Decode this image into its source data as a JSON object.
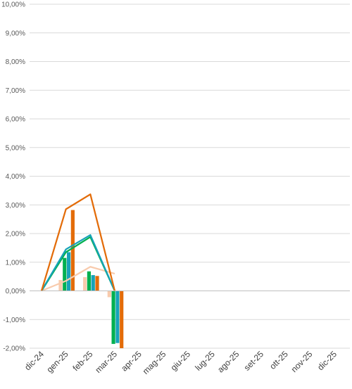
{
  "chart_data": {
    "type": "bar",
    "categories": [
      "dic-24",
      "gen-25",
      "feb-25",
      "mar-25",
      "apr-25",
      "mag-25",
      "giu-25",
      "lug-25",
      "ago-25",
      "set-25",
      "ott-25",
      "nov-25",
      "dic-25"
    ],
    "y_ticks": [
      "-2,00%",
      "-1,00%",
      "0,00%",
      "1,00%",
      "2,00%",
      "3,00%",
      "4,00%",
      "5,00%",
      "6,00%",
      "7,00%",
      "8,00%",
      "9,00%",
      "10,00%"
    ],
    "ylim": [
      -2,
      10
    ],
    "grid": true,
    "legend": "none",
    "bar_series": [
      {
        "color": "#f8cbad",
        "values": [
          0,
          0.38,
          0.48,
          -0.22
        ]
      },
      {
        "color": "#00b050",
        "values": [
          0,
          1.15,
          0.68,
          -1.85
        ]
      },
      {
        "color": "#17a2b8",
        "values": [
          0,
          1.35,
          0.55,
          -1.82
        ]
      },
      {
        "color": "#e36c09",
        "values": [
          0,
          2.82,
          0.52,
          -2.0
        ]
      }
    ],
    "line_series": [
      {
        "color": "#f8cbad",
        "values": [
          0,
          0.35,
          0.84,
          0.6
        ]
      },
      {
        "color": "#00b050",
        "values": [
          0,
          1.35,
          1.88,
          0
        ]
      },
      {
        "color": "#17a2b8",
        "values": [
          0,
          1.45,
          1.95,
          0
        ]
      },
      {
        "color": "#e36c09",
        "values": [
          0,
          2.85,
          3.37,
          0
        ]
      }
    ]
  }
}
